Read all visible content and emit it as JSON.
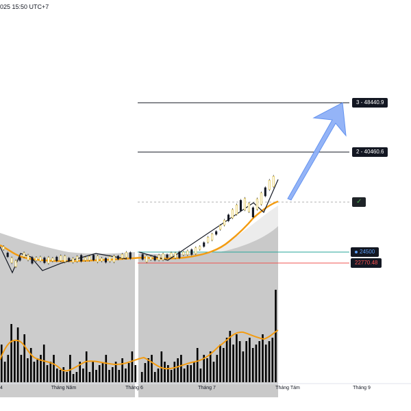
{
  "header": {
    "timestamp": "025 15:50 UTC+7"
  },
  "targets": [
    {
      "label": "3 - 48440.9",
      "price": 48440.9
    },
    {
      "label": "2 - 40460.6",
      "price": 40460.6
    }
  ],
  "entry_marker": {
    "label": "✓"
  },
  "price_tags": [
    {
      "label": "24500",
      "icon": "circle-dot-icon",
      "color": "#5c9df5"
    },
    {
      "label": "22770.48",
      "color": "#ff5252"
    }
  ],
  "x_axis": {
    "labels": [
      "4",
      "Tháng Năm",
      "Tháng 6",
      "Tháng 7",
      "Tháng Tám",
      "Tháng 9"
    ]
  },
  "colors": {
    "moving_average": "#f39c12",
    "arrow": "#6e9cf5",
    "support_line": "#26a69a",
    "resistance_line": "#ef5350",
    "volume": "#000000",
    "cloud": "#c8c8c8"
  },
  "chart_data": {
    "type": "candlestick-with-volume",
    "volume_bars": [
      55,
      30,
      40,
      85,
      60,
      80,
      40,
      70,
      35,
      50,
      30,
      35,
      40,
      55,
      25,
      30,
      40,
      20,
      18,
      22,
      15,
      40,
      12,
      15,
      30,
      20,
      45,
      15,
      30,
      18,
      25,
      28,
      40,
      18,
      22,
      30,
      18,
      35,
      20,
      28,
      45,
      25,
      30,
      15,
      28,
      35,
      40,
      15,
      20,
      45,
      30,
      25,
      18,
      30,
      35,
      40,
      20,
      25,
      25,
      30,
      50,
      20,
      40,
      35,
      45,
      30,
      40,
      55,
      50,
      65,
      75,
      55,
      70,
      60,
      45,
      60,
      65,
      50,
      55,
      60,
      70,
      55,
      60,
      65,
      135
    ]
  }
}
